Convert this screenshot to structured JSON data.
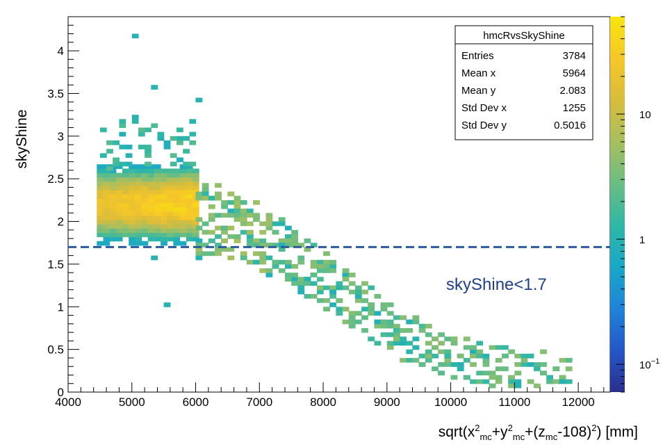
{
  "chart_data": {
    "type": "heatmap",
    "title": "",
    "xlabel_parts": {
      "prefix": "sqrt(x",
      "sup1": "2",
      "sub1": "mc",
      "mid1": "+y",
      "sup2": "2",
      "sub2": "mc",
      "mid2": "+(z",
      "sub3": "mc",
      "mid3": "-108)",
      "sup3": "2",
      "suffix": ") [mm]"
    },
    "ylabel": "skyShine",
    "xlim": [
      4000,
      12500
    ],
    "ylim": [
      0,
      4.4
    ],
    "x_ticks": [
      4000,
      5000,
      6000,
      7000,
      8000,
      9000,
      10000,
      11000,
      12000
    ],
    "x_tick_labels": [
      "4000",
      "5000",
      "6000",
      "7000",
      "8000",
      "9000",
      "10000",
      "11000",
      "12000"
    ],
    "y_ticks": [
      0,
      0.5,
      1,
      1.5,
      2,
      2.5,
      3,
      3.5,
      4
    ],
    "y_tick_labels": [
      "0",
      "0.5",
      "1",
      "1.5",
      "2",
      "2.5",
      "3",
      "3.5",
      "4"
    ],
    "colorbar": {
      "scale": "log",
      "range": [
        0.06,
        60
      ],
      "tick_labels": [
        {
          "value": 0.1,
          "base": "10",
          "exp": "−1"
        },
        {
          "value": 1,
          "base": "1",
          "exp": ""
        },
        {
          "value": 10,
          "base": "10",
          "exp": ""
        }
      ],
      "colors": [
        "#2a2f8c",
        "#2457c8",
        "#1f83d8",
        "#19a8c8",
        "#30b7a6",
        "#6abd82",
        "#a8bf5f",
        "#d8bc3c",
        "#f6c728",
        "#f9e50f"
      ]
    },
    "stats_box": {
      "title": "hmcRvsSkyShine",
      "rows": [
        {
          "label": "Entries",
          "value": "3784"
        },
        {
          "label": "Mean x",
          "value": "5964"
        },
        {
          "label": "Mean y",
          "value": "2.083"
        },
        {
          "label": "Std Dev x",
          "value": "1255"
        },
        {
          "label": "Std Dev y",
          "value": "0.5016"
        }
      ]
    },
    "cut_line": {
      "y": 1.7,
      "color": "#2c5a9a"
    },
    "annotation": {
      "text": "skyShine<1.7",
      "color": "#1f3f8a"
    },
    "bin_width_x": 100,
    "bin_width_y": 0.05
  }
}
